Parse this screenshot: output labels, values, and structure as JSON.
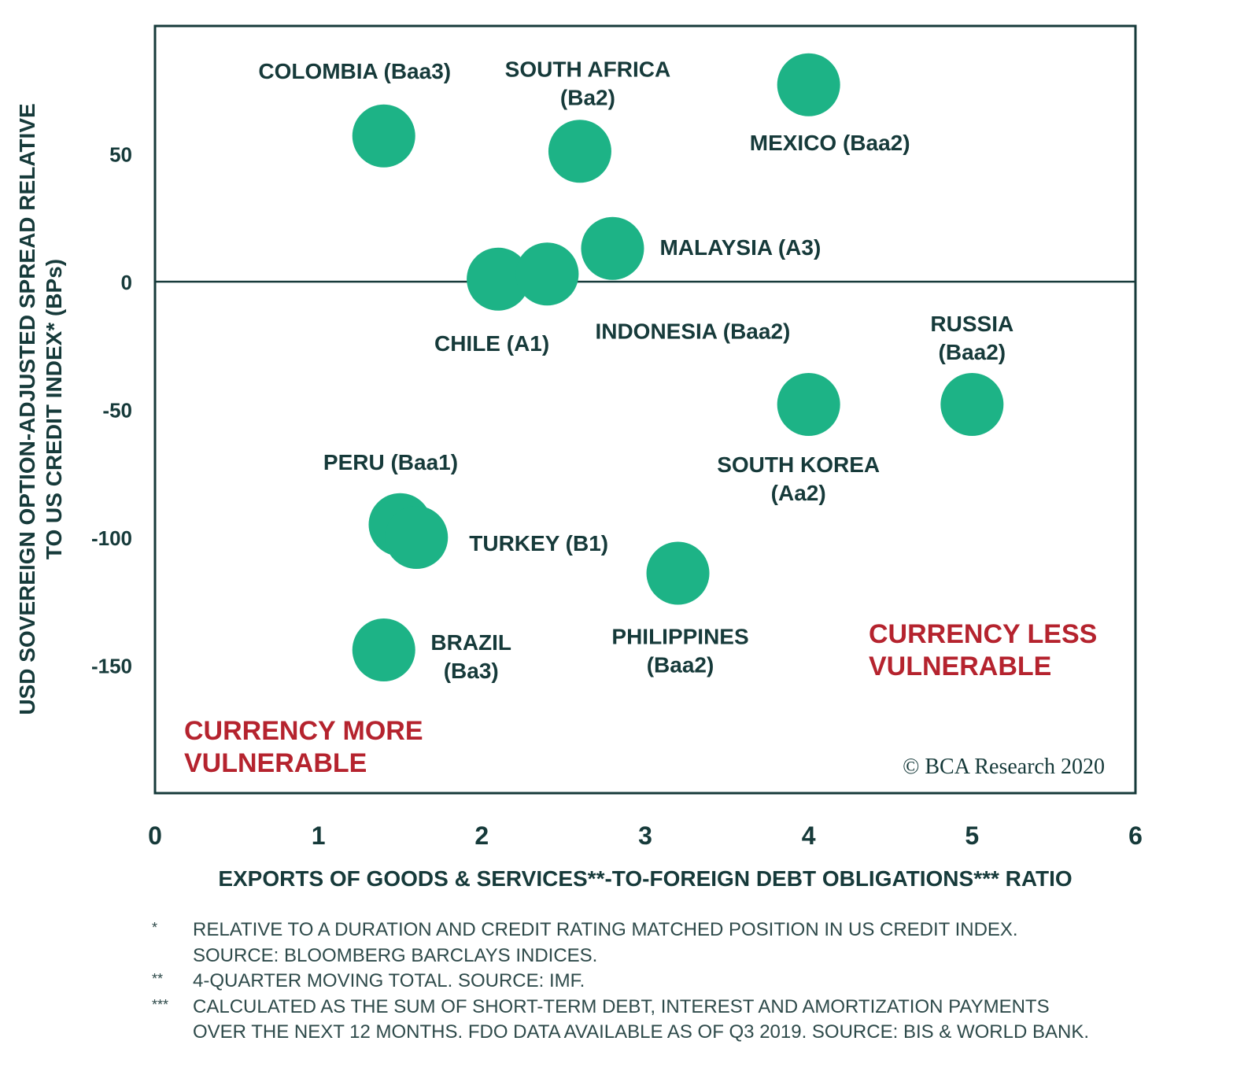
{
  "chart_data": {
    "type": "scatter",
    "title": "",
    "xlabel": "EXPORTS OF GOODS & SERVICES**-TO-FOREIGN DEBT OBLIGATIONS*** RATIO",
    "ylabel_lines": [
      "USD SOVEREIGN OPTION-ADJUSTED SPREAD RELATIVE",
      "TO US CREDIT INDEX* (BPs)"
    ],
    "xlim": [
      0,
      6
    ],
    "ylim": [
      -200,
      100
    ],
    "x_ticks": [
      0,
      1,
      2,
      3,
      4,
      5,
      6
    ],
    "y_ticks": [
      50,
      0,
      -50,
      -100,
      -150
    ],
    "grid": false,
    "zero_line": true,
    "marker_color": "#1db386",
    "points": [
      {
        "country": "COLOMBIA",
        "rating": "Baa3",
        "label_lines": [
          "COLOMBIA (Baa3)"
        ],
        "x": 1.4,
        "y": 57
      },
      {
        "country": "SOUTH AFRICA",
        "rating": "Ba2",
        "label_lines": [
          "SOUTH AFRICA",
          "(Ba2)"
        ],
        "x": 2.6,
        "y": 51
      },
      {
        "country": "MEXICO",
        "rating": "Baa2",
        "label_lines": [
          "MEXICO (Baa2)"
        ],
        "x": 4.0,
        "y": 77
      },
      {
        "country": "MALAYSIA",
        "rating": "A3",
        "label_lines": [
          "MALAYSIA (A3)"
        ],
        "x": 2.8,
        "y": 13
      },
      {
        "country": "CHILE",
        "rating": "A1",
        "label_lines": [
          "CHILE (A1)"
        ],
        "x": 2.1,
        "y": 1
      },
      {
        "country": "INDONESIA",
        "rating": "Baa2",
        "label_lines": [
          "INDONESIA (Baa2)"
        ],
        "x": 2.4,
        "y": 3
      },
      {
        "country": "RUSSIA",
        "rating": "Baa2",
        "label_lines": [
          "RUSSIA",
          "(Baa2)"
        ],
        "x": 5.0,
        "y": -48
      },
      {
        "country": "SOUTH KOREA",
        "rating": "Aa2",
        "label_lines": [
          "SOUTH KOREA",
          "(Aa2)"
        ],
        "x": 4.0,
        "y": -48
      },
      {
        "country": "PERU",
        "rating": "Baa1",
        "label_lines": [
          "PERU (Baa1)"
        ],
        "x": 1.5,
        "y": -95
      },
      {
        "country": "TURKEY",
        "rating": "B1",
        "label_lines": [
          "TURKEY (B1)"
        ],
        "x": 1.6,
        "y": -100
      },
      {
        "country": "PHILIPPINES",
        "rating": "Baa2",
        "label_lines": [
          "PHILIPPINES",
          "(Baa2)"
        ],
        "x": 3.2,
        "y": -114
      },
      {
        "country": "BRAZIL",
        "rating": "Ba3",
        "label_lines": [
          "BRAZIL",
          "(Ba3)"
        ],
        "x": 1.4,
        "y": -144
      }
    ],
    "annotations": {
      "more_vulnerable": [
        "CURRENCY MORE",
        "VULNERABLE"
      ],
      "less_vulnerable": [
        "CURRENCY LESS",
        "VULNERABLE"
      ],
      "annotation_color": "#b5232e",
      "copyright": "© BCA Research 2020"
    }
  },
  "footnotes": [
    {
      "mark": "*",
      "text": "RELATIVE TO A DURATION AND CREDIT RATING MATCHED POSITION IN US CREDIT INDEX.\nSOURCE: BLOOMBERG BARCLAYS INDICES."
    },
    {
      "mark": "**",
      "text": "4-QUARTER MOVING TOTAL. SOURCE: IMF."
    },
    {
      "mark": "***",
      "text": "CALCULATED AS THE SUM OF SHORT-TERM DEBT, INTEREST AND AMORTIZATION PAYMENTS\nOVER THE NEXT 12 MONTHS. FDO DATA AVAILABLE AS OF Q3 2019. SOURCE: BIS & WORLD BANK."
    }
  ]
}
